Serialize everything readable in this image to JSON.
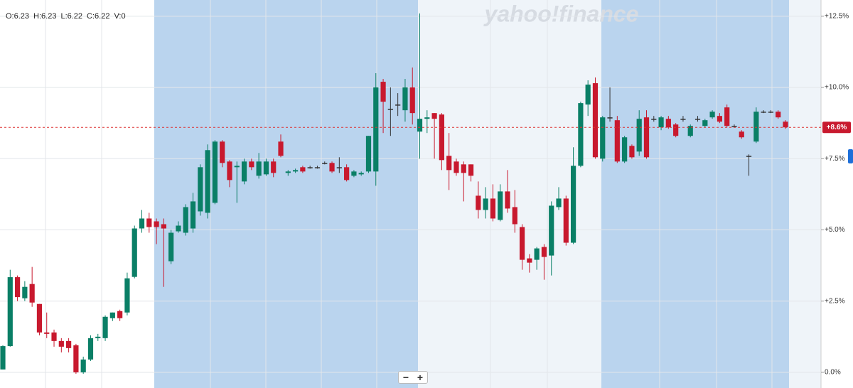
{
  "chart_data": {
    "type": "candlestick",
    "ohlc_text": [
      "O:6.23",
      "H:6.23",
      "L:6.22",
      "C:6.22",
      "V:0"
    ],
    "watermark": "yahoo!finance",
    "zoom_buttons": [
      "−",
      "+"
    ],
    "up_color": "#0a7f66",
    "down_color": "#c8192e",
    "flat_color": "#333333",
    "ylim": [
      -0.55,
      13.07
    ],
    "yticks": [
      {
        "value": 12.5,
        "label": "+12.5%"
      },
      {
        "value": 10,
        "label": "+10.0%"
      },
      {
        "value": 7.5,
        "label": "+7.5%"
      },
      {
        "value": 5,
        "label": "+5.0%"
      },
      {
        "value": 2.5,
        "label": "+2.5%"
      },
      {
        "value": 0,
        "label": "0.0%"
      }
    ],
    "grid": true,
    "last_value": {
      "value": 8.6,
      "label": "+8.6%"
    },
    "open": [
      0.1,
      0.92,
      3.34,
      2.6,
      3.1,
      2.4,
      1.4,
      1.4,
      1.1,
      1.1,
      0.95,
      0.0,
      0.45,
      1.2,
      1.2,
      1.9,
      2.15,
      2.1,
      3.35,
      5.05,
      5.4,
      5.3,
      5.2,
      3.9,
      4.95,
      4.9,
      5.05,
      5.65,
      5.6,
      5.95,
      8.1,
      7.4,
      7.2,
      6.7,
      7.4,
      6.9,
      6.95,
      7.4,
      8.1,
      7.0,
      7.05,
      7.2,
      7.2,
      7.2,
      7.35,
      7.35,
      7.2,
      7.2,
      6.9,
      6.95,
      7.05,
      7.05,
      10.2,
      9.25,
      9.4,
      9.2,
      10.0,
      8.45,
      8.9,
      9.1,
      9.05,
      7.6,
      7.4,
      7.3,
      7.3,
      6.2,
      5.7,
      6.1,
      5.35,
      6.35,
      5.8,
      5.1,
      4.0,
      3.95,
      4.4,
      4.1,
      5.8,
      6.1,
      4.55,
      7.25,
      9.4,
      10.15,
      7.5,
      8.95,
      8.85,
      7.4,
      7.95,
      7.75,
      8.95,
      8.9,
      8.6,
      8.9,
      8.7,
      8.9,
      8.3,
      8.9,
      8.65,
      8.95,
      9.0,
      9.3,
      8.65,
      8.45,
      7.6,
      8.1,
      9.15,
      9.15,
      9.15,
      8.8
    ],
    "high": [
      0.95,
      3.6,
      3.4,
      3.2,
      3.7,
      2.4,
      2.1,
      1.5,
      1.2,
      1.2,
      1.0,
      0.55,
      1.3,
      1.35,
      2.0,
      2.1,
      2.2,
      3.5,
      5.15,
      5.7,
      5.6,
      5.4,
      5.4,
      5.0,
      5.3,
      5.9,
      6.3,
      7.3,
      8.0,
      8.15,
      8.15,
      7.45,
      7.4,
      7.5,
      7.5,
      7.7,
      7.5,
      7.5,
      8.35,
      7.1,
      7.15,
      7.25,
      7.25,
      7.25,
      7.4,
      7.4,
      7.55,
      7.3,
      7.1,
      7.05,
      8.3,
      10.5,
      10.3,
      10.0,
      9.8,
      10.3,
      10.7,
      12.6,
      9.2,
      9.1,
      9.1,
      8.4,
      7.5,
      7.4,
      7.3,
      6.7,
      6.5,
      6.6,
      6.6,
      7.1,
      6.4,
      5.2,
      4.15,
      4.4,
      4.5,
      6.0,
      6.5,
      6.2,
      7.9,
      9.5,
      10.25,
      10.35,
      9.0,
      10.0,
      9.0,
      8.3,
      8.0,
      9.2,
      9.2,
      9.0,
      9.0,
      9.0,
      8.75,
      9.0,
      8.7,
      9.0,
      8.9,
      9.2,
      9.1,
      9.4,
      8.7,
      8.5,
      7.65,
      9.3,
      9.2,
      9.2,
      9.2,
      8.85
    ],
    "low": [
      0.1,
      0.9,
      2.5,
      2.5,
      2.3,
      1.3,
      1.2,
      0.9,
      0.7,
      0.7,
      -0.05,
      -0.05,
      0.4,
      1.1,
      1.1,
      1.8,
      1.8,
      2.0,
      3.3,
      4.9,
      4.9,
      4.5,
      3.0,
      3.8,
      4.9,
      4.8,
      4.9,
      5.5,
      5.4,
      5.9,
      7.2,
      6.5,
      5.95,
      6.6,
      7.1,
      6.8,
      6.9,
      6.85,
      7.55,
      6.9,
      7.0,
      7.0,
      7.15,
      7.15,
      7.3,
      7.0,
      7.0,
      6.7,
      6.85,
      6.9,
      7.0,
      6.55,
      8.4,
      8.3,
      9.0,
      8.8,
      8.7,
      7.5,
      8.4,
      7.5,
      7.1,
      6.4,
      6.9,
      6.0,
      6.7,
      5.4,
      5.4,
      5.3,
      5.3,
      5.6,
      4.9,
      3.6,
      3.5,
      3.6,
      3.25,
      3.4,
      5.7,
      4.45,
      4.5,
      7.2,
      9.0,
      7.5,
      7.4,
      8.8,
      7.35,
      7.35,
      7.5,
      7.6,
      7.5,
      8.8,
      8.5,
      8.55,
      8.25,
      8.8,
      8.25,
      8.8,
      8.6,
      8.9,
      8.75,
      8.6,
      8.6,
      8.2,
      6.9,
      8.05,
      9.1,
      9.1,
      8.9,
      8.55
    ],
    "close": [
      0.92,
      3.34,
      2.64,
      3.0,
      2.45,
      1.4,
      1.35,
      1.1,
      0.9,
      0.85,
      0.0,
      0.45,
      1.2,
      1.25,
      1.95,
      2.1,
      1.9,
      3.3,
      5.05,
      5.4,
      5.1,
      5.1,
      5.05,
      4.9,
      5.15,
      5.8,
      6.0,
      7.2,
      7.8,
      8.1,
      7.35,
      6.75,
      7.25,
      7.4,
      7.2,
      7.4,
      7.4,
      7.0,
      7.6,
      7.05,
      7.1,
      7.05,
      7.2,
      7.2,
      7.35,
      7.05,
      7.2,
      6.75,
      7.05,
      7.0,
      8.3,
      10.0,
      9.5,
      9.25,
      9.4,
      10.0,
      9.1,
      8.9,
      8.95,
      8.9,
      7.45,
      7.1,
      7.0,
      7.0,
      6.9,
      5.7,
      6.1,
      5.4,
      6.35,
      5.75,
      5.2,
      3.95,
      3.85,
      4.35,
      4.05,
      5.85,
      6.1,
      4.55,
      7.25,
      9.45,
      10.1,
      7.55,
      8.95,
      8.95,
      7.4,
      8.25,
      7.55,
      8.9,
      7.55,
      8.9,
      8.95,
      8.6,
      8.3,
      8.9,
      8.65,
      8.9,
      8.85,
      9.15,
      8.8,
      8.65,
      8.65,
      8.25,
      7.6,
      9.15,
      9.15,
      9.15,
      8.95,
      8.6
    ]
  }
}
